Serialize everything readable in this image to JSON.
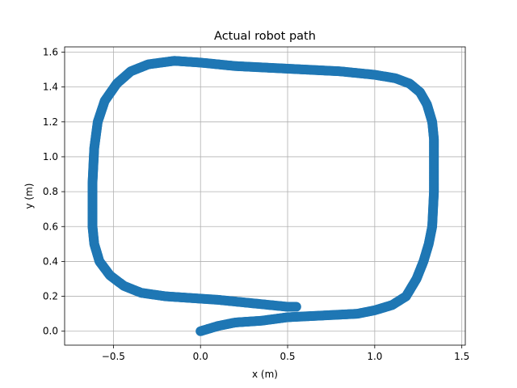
{
  "chart_data": {
    "type": "scatter",
    "title": "Actual robot path",
    "xlabel": "x (m)",
    "ylabel": "y (m)",
    "xlim": [
      -0.78,
      1.52
    ],
    "ylim": [
      -0.08,
      1.63
    ],
    "xticks": [
      -0.5,
      0.0,
      0.5,
      1.0,
      1.5
    ],
    "xtick_labels": [
      "−0.5",
      "0.0",
      "0.5",
      "1.0",
      "1.5"
    ],
    "yticks": [
      0.0,
      0.2,
      0.4,
      0.6,
      0.8,
      1.0,
      1.2,
      1.4,
      1.6
    ],
    "ytick_labels": [
      "0.0",
      "0.2",
      "0.4",
      "0.6",
      "0.8",
      "1.0",
      "1.2",
      "1.4",
      "1.6"
    ],
    "grid": true,
    "color": "#1f77b4",
    "series": [
      {
        "x": [
          0.0,
          0.1,
          0.2,
          0.35,
          0.5,
          0.7,
          0.9,
          1.0,
          1.1,
          1.18,
          1.24,
          1.28,
          1.31,
          1.33,
          1.34,
          1.34,
          1.34,
          1.33,
          1.3,
          1.26,
          1.2,
          1.12,
          1.0,
          0.8,
          0.6,
          0.4,
          0.2,
          0.0,
          -0.15,
          -0.3,
          -0.4,
          -0.48,
          -0.55,
          -0.59,
          -0.61,
          -0.62,
          -0.62,
          -0.62,
          -0.61,
          -0.58,
          -0.52,
          -0.44,
          -0.34,
          -0.2,
          -0.05,
          0.1,
          0.2,
          0.3,
          0.4,
          0.5,
          0.55
        ],
        "y": [
          0.0,
          0.03,
          0.05,
          0.06,
          0.08,
          0.09,
          0.1,
          0.12,
          0.15,
          0.2,
          0.3,
          0.4,
          0.5,
          0.6,
          0.8,
          1.0,
          1.1,
          1.2,
          1.3,
          1.37,
          1.42,
          1.45,
          1.47,
          1.49,
          1.5,
          1.51,
          1.52,
          1.54,
          1.55,
          1.53,
          1.49,
          1.42,
          1.32,
          1.2,
          1.05,
          0.85,
          0.7,
          0.6,
          0.5,
          0.4,
          0.32,
          0.26,
          0.22,
          0.2,
          0.19,
          0.18,
          0.17,
          0.16,
          0.15,
          0.14,
          0.14
        ]
      }
    ]
  }
}
